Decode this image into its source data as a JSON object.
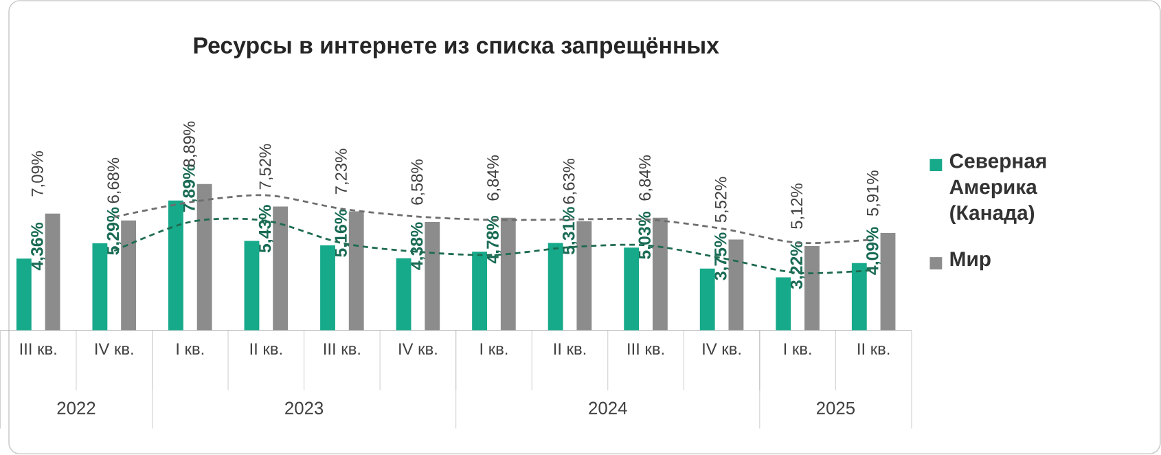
{
  "chart_data": {
    "type": "bar",
    "title": "Ресурсы в интернете из списка запрещённых",
    "categories": [
      "III кв.",
      "IV кв.",
      "I кв.",
      "II кв.",
      "III кв.",
      "IV кв.",
      "I кв.",
      "II кв.",
      "III кв.",
      "IV кв.",
      "I кв.",
      "II кв."
    ],
    "series": [
      {
        "name": "Северная Америка (Канада)",
        "color": "#16a98a",
        "values": [
          4.36,
          5.29,
          7.89,
          5.43,
          5.16,
          4.38,
          4.78,
          5.31,
          5.03,
          3.75,
          3.22,
          4.09
        ],
        "value_labels": [
          "4,36%",
          "5,29%",
          "7,89%",
          "5,43%",
          "5,16%",
          "4,38%",
          "4,78%",
          "5,31%",
          "5,03%",
          "3,75%",
          "3,22%",
          "4,09%"
        ]
      },
      {
        "name": "Мир",
        "color": "#8c8c8c",
        "values": [
          7.09,
          6.68,
          8.89,
          7.52,
          7.23,
          6.58,
          6.84,
          6.63,
          6.84,
          5.52,
          5.12,
          5.91
        ],
        "value_labels": [
          "7,09%",
          "6,68%",
          "8,89%",
          "7,52%",
          "7,23%",
          "6,58%",
          "6,84%",
          "6,63%",
          "6,84%",
          "5,52%",
          "5,12%",
          "5,91%"
        ]
      },
      {
        "type": "line",
        "color": "#1e6b50",
        "line_style": "dashed",
        "values": [
          null,
          4.83,
          6.59,
          6.66,
          5.3,
          4.77,
          4.58,
          5.05,
          5.17,
          4.39,
          3.49,
          3.66
        ]
      },
      {
        "type": "line",
        "color": "#6e6e6e",
        "line_style": "dashed",
        "values": [
          null,
          6.89,
          7.79,
          8.21,
          7.38,
          6.91,
          6.71,
          6.74,
          6.74,
          6.18,
          5.32,
          5.52
        ]
      }
    ],
    "annotations": [
      "2022",
      "2023",
      "2024",
      "2025"
    ],
    "legend": "right",
    "tick_labels": "x"
  }
}
